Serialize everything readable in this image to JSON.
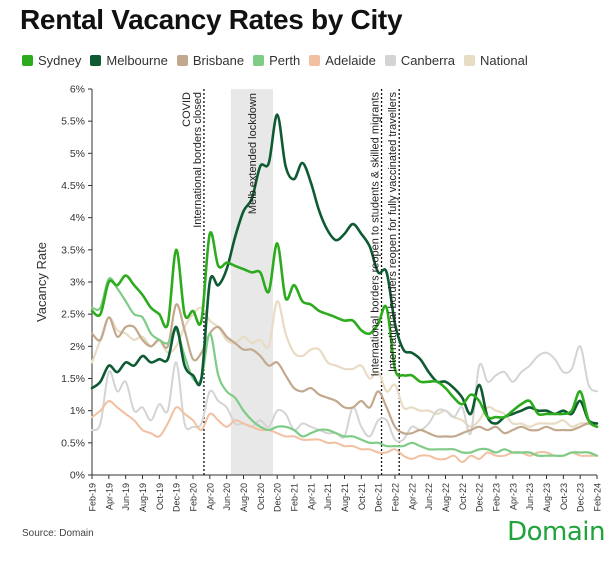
{
  "chart_data": {
    "type": "line",
    "title": "Rental Vacancy Rates by City",
    "xlabel": "",
    "ylabel": "Vacancy Rate",
    "ylim": [
      0,
      6
    ],
    "yticks": [
      "0%",
      "0.5%",
      "1%",
      "1.5%",
      "2%",
      "2.5%",
      "3%",
      "3.5%",
      "4%",
      "4.5%",
      "5%",
      "5.5%",
      "6%"
    ],
    "xlim": [
      0,
      60
    ],
    "xticks": [
      {
        "x": 0,
        "label": "Feb-19"
      },
      {
        "x": 2,
        "label": "Apr-19"
      },
      {
        "x": 4,
        "label": "Jun-19"
      },
      {
        "x": 6,
        "label": "Aug-19"
      },
      {
        "x": 8,
        "label": "Oct-19"
      },
      {
        "x": 10,
        "label": "Dec-19"
      },
      {
        "x": 12,
        "label": "Feb-20"
      },
      {
        "x": 14,
        "label": "Apr-20"
      },
      {
        "x": 16,
        "label": "Jun-20"
      },
      {
        "x": 18,
        "label": "Aug-20"
      },
      {
        "x": 20,
        "label": "Oct-20"
      },
      {
        "x": 22,
        "label": "Dec-20"
      },
      {
        "x": 24,
        "label": "Feb-21"
      },
      {
        "x": 26,
        "label": "Apr-21"
      },
      {
        "x": 28,
        "label": "Jun-21"
      },
      {
        "x": 30,
        "label": "Aug-21"
      },
      {
        "x": 32,
        "label": "Oct-21"
      },
      {
        "x": 34,
        "label": "Dec-21"
      },
      {
        "x": 36,
        "label": "Feb-22"
      },
      {
        "x": 38,
        "label": "Apr-22"
      },
      {
        "x": 40,
        "label": "Jun-22"
      },
      {
        "x": 42,
        "label": "Aug-22"
      },
      {
        "x": 44,
        "label": "Oct-22"
      },
      {
        "x": 46,
        "label": "Dec-22"
      },
      {
        "x": 48,
        "label": "Feb-23"
      },
      {
        "x": 50,
        "label": "Apr-23"
      },
      {
        "x": 52,
        "label": "Jun-23"
      },
      {
        "x": 54,
        "label": "Aug-23"
      },
      {
        "x": 56,
        "label": "Oct-23"
      },
      {
        "x": 58,
        "label": "Dec-23"
      },
      {
        "x": 60,
        "label": "Feb-24"
      }
    ],
    "series": [
      {
        "name": "National",
        "color": "#e8dcc4",
        "width": 2.2,
        "values": [
          1.75,
          2.1,
          2.45,
          2.25,
          2.2,
          2.1,
          2.15,
          2.0,
          2.1,
          1.9,
          2.0,
          2.3,
          2.5,
          2.6,
          2.4,
          2.3,
          2.1,
          2.05,
          2.15,
          2.05,
          2.1,
          2.0,
          2.7,
          2.2,
          1.9,
          1.85,
          1.95,
          1.95,
          1.75,
          1.7,
          1.65,
          1.65,
          1.7,
          1.5,
          1.6,
          1.3,
          1.4,
          1.05,
          1.05,
          1.0,
          1.0,
          0.95,
          1.0,
          0.9,
          0.85,
          0.75,
          0.85,
          1.05,
          1.0,
          0.95,
          0.8,
          0.8,
          0.75,
          0.8,
          0.8,
          0.8,
          0.85,
          0.75,
          0.8,
          0.8,
          0.75
        ]
      },
      {
        "name": "Canberra",
        "color": "#d4d4d4",
        "width": 2.0,
        "values": [
          0.7,
          0.8,
          1.6,
          1.3,
          1.45,
          1.0,
          1.05,
          0.85,
          1.1,
          1.0,
          1.75,
          0.8,
          0.75,
          0.8,
          1.3,
          1.15,
          1.05,
          0.8,
          0.8,
          0.75,
          0.85,
          0.75,
          1.0,
          0.95,
          0.7,
          0.8,
          0.75,
          0.7,
          0.65,
          0.65,
          0.6,
          1.05,
          0.75,
          0.6,
          0.85,
          0.85,
          0.55,
          0.55,
          0.75,
          0.7,
          0.8,
          1.0,
          1.0,
          0.9,
          1.05,
          0.65,
          1.7,
          1.45,
          1.55,
          1.6,
          1.45,
          1.6,
          1.7,
          1.85,
          1.9,
          1.8,
          1.6,
          1.65,
          2.0,
          1.4,
          1.3
        ]
      },
      {
        "name": "Adelaide",
        "color": "#f2bfa0",
        "width": 2.0,
        "values": [
          0.9,
          1.0,
          1.15,
          1.05,
          0.95,
          0.85,
          0.7,
          0.65,
          0.6,
          0.8,
          1.05,
          0.95,
          0.85,
          0.7,
          0.95,
          0.85,
          0.75,
          0.85,
          0.8,
          0.75,
          0.7,
          0.7,
          0.65,
          0.6,
          0.6,
          0.55,
          0.55,
          0.55,
          0.5,
          0.5,
          0.45,
          0.45,
          0.4,
          0.4,
          0.35,
          0.35,
          0.4,
          0.3,
          0.25,
          0.3,
          0.3,
          0.25,
          0.25,
          0.3,
          0.2,
          0.3,
          0.25,
          0.35,
          0.3,
          0.3,
          0.35,
          0.35,
          0.3,
          0.35,
          0.35,
          0.3,
          0.3,
          0.35,
          0.3,
          0.3,
          0.3
        ]
      },
      {
        "name": "Brisbane",
        "color": "#c2a98e",
        "width": 2.2,
        "values": [
          2.2,
          2.1,
          2.45,
          2.15,
          2.3,
          2.3,
          2.1,
          2.0,
          2.1,
          2.0,
          2.65,
          2.25,
          1.8,
          1.9,
          2.2,
          2.3,
          2.15,
          2.05,
          1.95,
          1.95,
          1.85,
          1.7,
          1.75,
          1.55,
          1.35,
          1.3,
          1.35,
          1.25,
          1.2,
          1.15,
          1.05,
          1.05,
          1.15,
          1.05,
          1.3,
          1.05,
          0.75,
          0.65,
          0.65,
          0.7,
          0.65,
          0.6,
          0.6,
          0.6,
          0.65,
          0.7,
          0.75,
          0.7,
          0.75,
          0.65,
          0.7,
          0.75,
          0.7,
          0.7,
          0.75,
          0.7,
          0.7,
          0.7,
          0.75,
          0.8,
          0.75
        ]
      },
      {
        "name": "Perth",
        "color": "#7fcc86",
        "width": 2.2,
        "values": [
          2.6,
          2.6,
          3.05,
          2.9,
          2.7,
          2.5,
          2.45,
          2.2,
          2.1,
          2.05,
          2.25,
          1.85,
          1.5,
          1.5,
          2.2,
          1.55,
          1.3,
          1.2,
          1.0,
          0.85,
          0.75,
          0.7,
          0.75,
          0.75,
          0.7,
          0.6,
          0.65,
          0.7,
          0.7,
          0.65,
          0.6,
          0.6,
          0.55,
          0.5,
          0.5,
          0.45,
          0.45,
          0.45,
          0.5,
          0.45,
          0.4,
          0.4,
          0.4,
          0.4,
          0.35,
          0.35,
          0.4,
          0.4,
          0.35,
          0.4,
          0.35,
          0.35,
          0.35,
          0.3,
          0.3,
          0.3,
          0.3,
          0.35,
          0.35,
          0.35,
          0.3
        ]
      },
      {
        "name": "Melbourne",
        "color": "#0e5a32",
        "width": 2.6,
        "values": [
          1.35,
          1.45,
          1.7,
          1.6,
          1.75,
          1.7,
          1.85,
          1.75,
          1.8,
          1.8,
          2.3,
          1.7,
          1.55,
          1.5,
          3.0,
          2.95,
          3.2,
          3.7,
          4.1,
          4.3,
          4.8,
          4.85,
          5.6,
          4.8,
          4.6,
          4.85,
          4.55,
          4.1,
          3.8,
          3.65,
          3.75,
          3.9,
          3.75,
          3.55,
          3.15,
          3.15,
          2.35,
          1.95,
          1.9,
          1.8,
          1.6,
          1.45,
          1.45,
          1.35,
          1.2,
          0.95,
          1.4,
          0.9,
          0.8,
          0.9,
          0.95,
          1.0,
          1.05,
          1.0,
          1.0,
          0.95,
          1.0,
          0.95,
          1.15,
          0.85,
          0.8
        ]
      },
      {
        "name": "Sydney",
        "color": "#2cac1d",
        "width": 2.6,
        "values": [
          2.55,
          2.5,
          3.0,
          2.95,
          3.1,
          2.95,
          2.8,
          2.6,
          2.5,
          2.35,
          3.5,
          2.5,
          2.55,
          2.4,
          3.75,
          3.25,
          3.3,
          3.25,
          3.2,
          3.15,
          3.15,
          2.85,
          3.6,
          2.75,
          2.95,
          2.7,
          2.65,
          2.55,
          2.5,
          2.45,
          2.4,
          2.4,
          2.25,
          2.2,
          2.35,
          2.6,
          1.65,
          1.55,
          1.55,
          1.45,
          1.45,
          1.45,
          1.35,
          1.2,
          1.1,
          1.25,
          1.15,
          0.9,
          0.9,
          0.9,
          1.0,
          1.1,
          1.15,
          0.95,
          0.95,
          0.95,
          0.95,
          1.0,
          1.3,
          0.85,
          0.75
        ]
      }
    ],
    "legend": [
      {
        "name": "Sydney",
        "color": "#2cac1d"
      },
      {
        "name": "Melbourne",
        "color": "#0e5a32"
      },
      {
        "name": "Brisbane",
        "color": "#c2a98e"
      },
      {
        "name": "Perth",
        "color": "#7fcc86"
      },
      {
        "name": "Adelaide",
        "color": "#f2bfa0"
      },
      {
        "name": "Canberra",
        "color": "#d4d4d4"
      },
      {
        "name": "National",
        "color": "#e8dcc4"
      }
    ],
    "shaded_region": {
      "x0": 16.5,
      "x1": 21.5,
      "color": "#e8e8e8",
      "label": "Melb extended lockdown"
    },
    "annotations": [
      {
        "x": 13.3,
        "lines": [
          "COVID",
          "International borders closed"
        ]
      },
      {
        "x": 34.4,
        "lines": [
          "International borders reopen to students & skilled migrants"
        ]
      },
      {
        "x": 36.5,
        "lines": [
          "International borders reopen for fully vaccinated travellers"
        ]
      }
    ]
  },
  "footer": {
    "source": "Source: Domain",
    "brand": "Domain"
  }
}
